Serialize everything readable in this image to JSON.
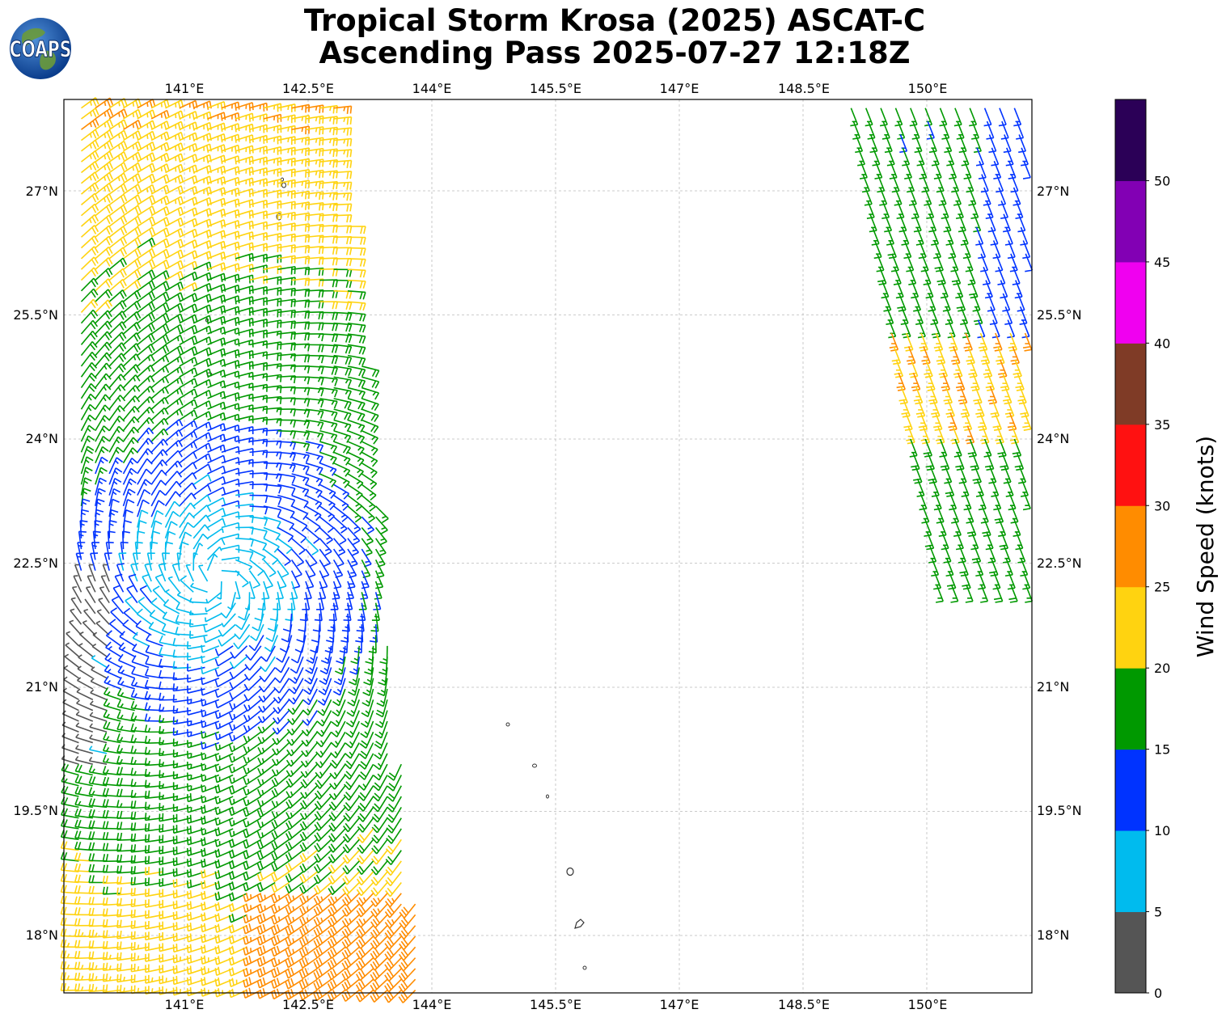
{
  "title": {
    "line1": "Tropical Storm Krosa (2025) ASCAT-C",
    "line2": "Ascending Pass 2025-07-27 12:18Z"
  },
  "logo": {
    "text": "COAPS",
    "icon": "globe-icon"
  },
  "map": {
    "lon_ticks": [
      "141°E",
      "142.5°E",
      "144°E",
      "145.5°E",
      "147°E",
      "148.5°E",
      "150°E"
    ],
    "lat_ticks": [
      "27°N",
      "25.5°N",
      "24°N",
      "22.5°N",
      "21°N",
      "19.5°N",
      "18°N"
    ],
    "gridlines": "dashed",
    "swaths": "two ASCAT swaths: west (~139.5–143.5°E) and east (~148.8–151.2°E)"
  },
  "colorbar": {
    "label": "Wind Speed (knots)",
    "ticks": [
      "0",
      "5",
      "10",
      "15",
      "20",
      "25",
      "30",
      "35",
      "40",
      "45",
      "50"
    ],
    "colors": [
      "#555555",
      "#00bbee",
      "#0033ff",
      "#009900",
      "#ffd310",
      "#ff8c00",
      "#ff1111",
      "#7f3b26",
      "#f000f0",
      "#8200b4",
      "#2b0057"
    ]
  },
  "chart_data": {
    "type": "map",
    "lon_range": [
      139.5,
      151.2
    ],
    "lat_range": [
      17.3,
      28.1
    ],
    "speed_bins_knots": [
      0,
      5,
      10,
      15,
      20,
      25,
      30,
      35,
      40,
      45,
      50,
      55
    ]
  }
}
